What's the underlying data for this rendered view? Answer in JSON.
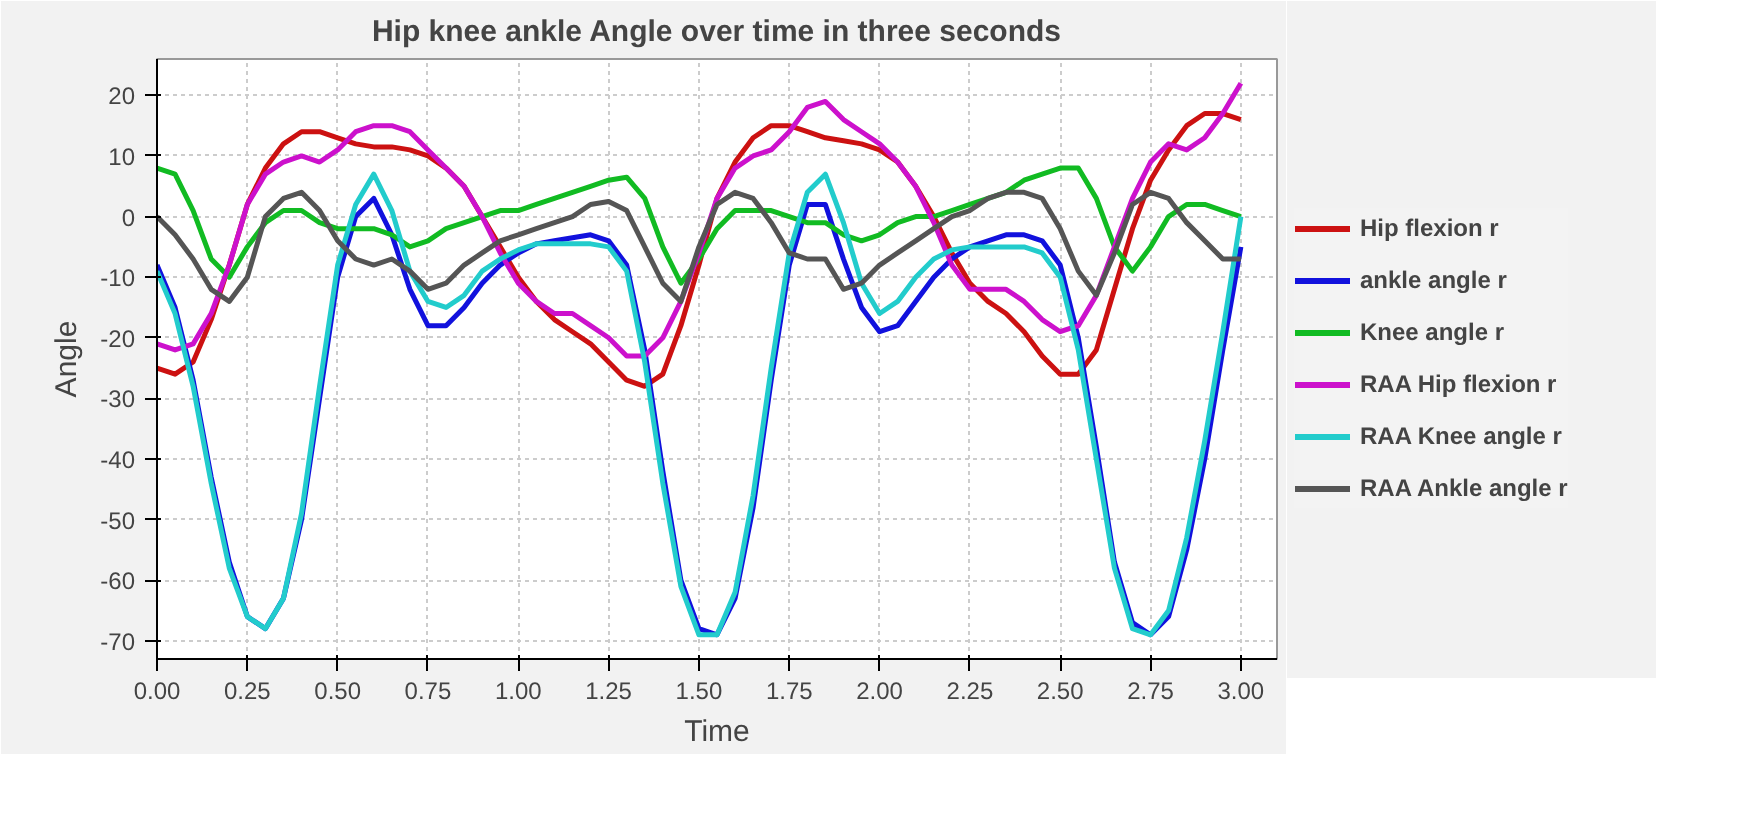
{
  "chart_data": {
    "type": "line",
    "title": "Hip knee ankle Angle over time in three seconds",
    "xlabel": "Time",
    "ylabel": "Angle",
    "x": [
      0,
      0.05,
      0.1,
      0.15,
      0.2,
      0.25,
      0.3,
      0.35,
      0.4,
      0.45,
      0.5,
      0.55,
      0.6,
      0.65,
      0.7,
      0.75,
      0.8,
      0.85,
      0.9,
      0.95,
      1.0,
      1.05,
      1.1,
      1.15,
      1.2,
      1.25,
      1.3,
      1.35,
      1.4,
      1.45,
      1.5,
      1.55,
      1.6,
      1.65,
      1.7,
      1.75,
      1.8,
      1.85,
      1.9,
      1.95,
      2.0,
      2.05,
      2.1,
      2.15,
      2.2,
      2.25,
      2.3,
      2.35,
      2.4,
      2.45,
      2.5,
      2.55,
      2.6,
      2.65,
      2.7,
      2.75,
      2.8,
      2.85,
      2.9,
      2.95,
      3.0
    ],
    "series": [
      {
        "name": "Hip flexion r",
        "color": "#cc1111",
        "values": [
          -25,
          -26,
          -24,
          -17,
          -8,
          2,
          8,
          12,
          14,
          14,
          13,
          12,
          11.5,
          11.5,
          11,
          10,
          8,
          5,
          0,
          -5,
          -10,
          -14,
          -17,
          -19,
          -21,
          -24,
          -27,
          -28,
          -26,
          -18,
          -8,
          3,
          9,
          13,
          15,
          15,
          14,
          13,
          12.5,
          12,
          11,
          9,
          5,
          0,
          -6,
          -11,
          -14,
          -16,
          -19,
          -23,
          -26,
          -26,
          -22,
          -12,
          -2,
          6,
          11,
          15,
          17,
          17,
          16
        ]
      },
      {
        "name": "ankle angle r",
        "color": "#1111dd",
        "values": [
          -8,
          -15,
          -27,
          -43,
          -57,
          -66,
          -68,
          -63,
          -50,
          -30,
          -10,
          0,
          3,
          -3,
          -12,
          -18,
          -18,
          -15,
          -11,
          -8,
          -6,
          -4.5,
          -4,
          -3.5,
          -3,
          -4,
          -8,
          -22,
          -42,
          -60,
          -68,
          -69,
          -63,
          -48,
          -27,
          -8,
          2,
          2,
          -7,
          -15,
          -19,
          -18,
          -14,
          -10,
          -7,
          -5,
          -4,
          -3,
          -3,
          -4,
          -8,
          -20,
          -38,
          -57,
          -67,
          -69,
          -66,
          -55,
          -40,
          -22,
          -5
        ]
      },
      {
        "name": "Knee angle r",
        "color": "#11bb22",
        "values": [
          8,
          7,
          1,
          -7,
          -10,
          -5,
          -1,
          1,
          1,
          -1,
          -2,
          -2,
          -2,
          -3,
          -5,
          -4,
          -2,
          -1,
          0,
          1,
          1,
          2,
          3,
          4,
          5,
          6,
          6.5,
          3,
          -5,
          -11,
          -7,
          -2,
          1,
          1,
          1,
          0,
          -1,
          -1,
          -3,
          -4,
          -3,
          -1,
          0,
          0,
          1,
          2,
          3,
          4,
          6,
          7,
          8,
          8,
          3,
          -5,
          -9,
          -5,
          0,
          2,
          2,
          1,
          0
        ]
      },
      {
        "name": "RAA Hip flexion r",
        "color": "#cc11cc",
        "values": [
          -21,
          -22,
          -21,
          -16,
          -8,
          2,
          7,
          9,
          10,
          9,
          11,
          14,
          15,
          15,
          14,
          11,
          8,
          5,
          0,
          -6,
          -11,
          -14,
          -16,
          -16,
          -18,
          -20,
          -23,
          -23,
          -20,
          -14,
          -6,
          3,
          8,
          10,
          11,
          14,
          18,
          19,
          16,
          14,
          12,
          9,
          5,
          -1,
          -8,
          -12,
          -12,
          -12,
          -14,
          -17,
          -19,
          -18,
          -13,
          -5,
          3,
          9,
          12,
          11,
          13,
          17,
          22
        ]
      },
      {
        "name": "RAA Knee angle r",
        "color": "#22cccc",
        "values": [
          -9,
          -16,
          -28,
          -44,
          -58,
          -66,
          -68,
          -63,
          -49,
          -28,
          -8,
          2,
          7,
          1,
          -9,
          -14,
          -15,
          -13,
          -9,
          -7,
          -5.5,
          -4.5,
          -4.5,
          -4.5,
          -4.5,
          -5,
          -9,
          -24,
          -44,
          -61,
          -69,
          -69,
          -62,
          -46,
          -25,
          -6,
          4,
          7,
          -1,
          -11,
          -16,
          -14,
          -10,
          -7,
          -5.5,
          -5,
          -5,
          -5,
          -5,
          -6,
          -10,
          -22,
          -40,
          -58,
          -68,
          -69,
          -65,
          -53,
          -37,
          -19,
          0
        ]
      },
      {
        "name": "RAA Ankle angle r",
        "color": "#555555",
        "values": [
          0,
          -3,
          -7,
          -12,
          -14,
          -10,
          0,
          3,
          4,
          1,
          -4,
          -7,
          -8,
          -7,
          -9,
          -12,
          -11,
          -8,
          -6,
          -4,
          -3,
          -2,
          -1,
          0,
          2,
          2.5,
          1,
          -5,
          -11,
          -14,
          -5,
          2,
          4,
          3,
          -1,
          -6,
          -7,
          -7,
          -12,
          -11,
          -8,
          -6,
          -4,
          -2,
          0,
          1,
          3,
          4,
          4,
          3,
          -2,
          -9,
          -13,
          -6,
          2,
          4,
          3,
          -1,
          -4,
          -7,
          -7
        ]
      }
    ],
    "xlim": [
      0,
      3.1
    ],
    "ylim": [
      -73,
      26
    ],
    "xticks": [
      {
        "value": 0,
        "label": "0.00"
      },
      {
        "value": 0.25,
        "label": "0.25"
      },
      {
        "value": 0.5,
        "label": "0.50"
      },
      {
        "value": 0.75,
        "label": "0.75"
      },
      {
        "value": 1,
        "label": "1.00"
      },
      {
        "value": 1.25,
        "label": "1.25"
      },
      {
        "value": 1.5,
        "label": "1.50"
      },
      {
        "value": 1.75,
        "label": "1.75"
      },
      {
        "value": 2,
        "label": "2.00"
      },
      {
        "value": 2.25,
        "label": "2.25"
      },
      {
        "value": 2.5,
        "label": "2.50"
      },
      {
        "value": 2.75,
        "label": "2.75"
      },
      {
        "value": 3,
        "label": "3.00"
      }
    ],
    "yticks": [
      -70,
      -60,
      -50,
      -40,
      -30,
      -20,
      -10,
      0,
      10,
      20
    ],
    "grid": true,
    "legend": "right",
    "marker": "none",
    "line_style": "solid"
  }
}
